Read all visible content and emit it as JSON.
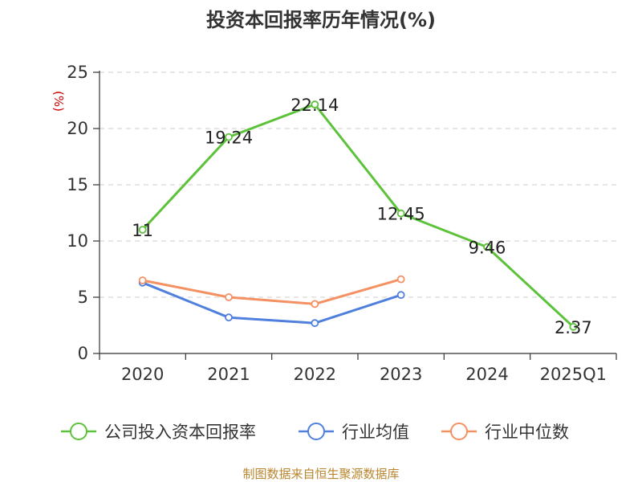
{
  "chart_data": {
    "type": "line",
    "title": "投资本回报率历年情况(%)",
    "ylabel": "(%)",
    "xlabel": "",
    "categories": [
      "2020",
      "2021",
      "2022",
      "2023",
      "2024",
      "2025Q1"
    ],
    "ylim": [
      0,
      25
    ],
    "yticks": [
      0,
      5,
      10,
      15,
      20,
      25
    ],
    "grid": true,
    "legend_position": "bottom",
    "series": [
      {
        "name": "公司投入资本回报率",
        "color": "#5cc23a",
        "values": [
          11,
          19.24,
          22.14,
          12.45,
          9.46,
          2.37
        ],
        "labels": [
          "11",
          "19.24",
          "22.14",
          "12.45",
          "9.46",
          "2.37"
        ]
      },
      {
        "name": "行业均值",
        "color": "#4f80de",
        "values": [
          6.3,
          3.2,
          2.7,
          5.2,
          null,
          null
        ]
      },
      {
        "name": "行业中位数",
        "color": "#f59062",
        "values": [
          6.5,
          5.0,
          4.4,
          6.6,
          null,
          null
        ]
      }
    ],
    "source": "制图数据来自恒生聚源数据库"
  }
}
